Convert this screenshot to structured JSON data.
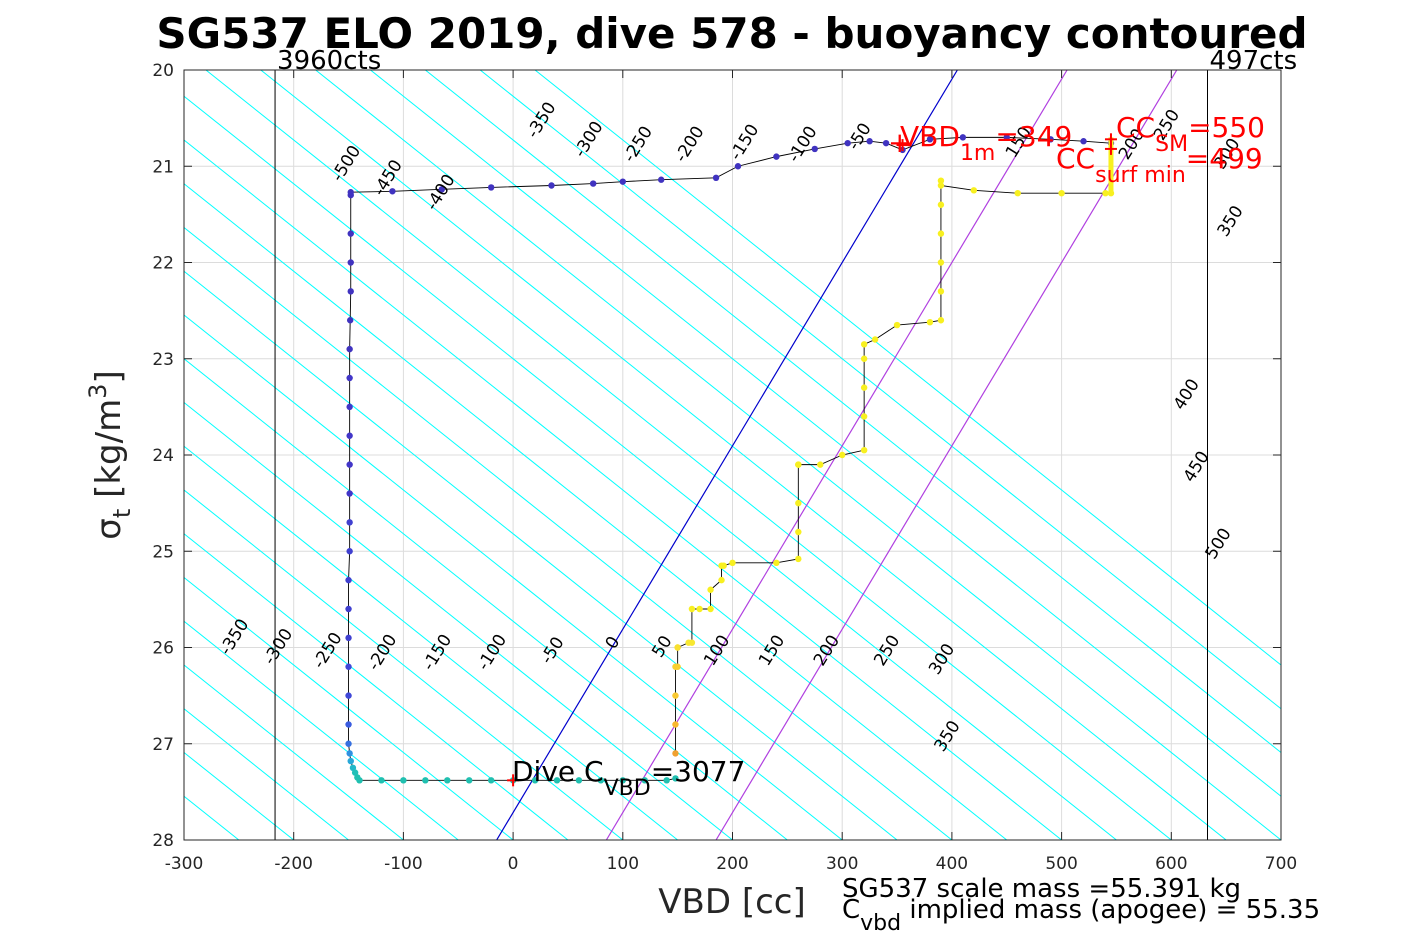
{
  "chart_data": {
    "type": "line",
    "title": "SG537 ELO 2019, dive 578 - buoyancy contoured",
    "xlabel": "VBD [cc]",
    "ylabel": {
      "sym": "σ",
      "sub": "t",
      "rest": " [kg/m",
      "sup": "3",
      "end": "]"
    },
    "xlim": [
      -300,
      700
    ],
    "ylim": [
      20,
      28
    ],
    "y_reversed": true,
    "grid": true,
    "xticks": [
      -300,
      -200,
      -100,
      0,
      100,
      200,
      300,
      400,
      500,
      600,
      700
    ],
    "yticks": [
      20,
      21,
      22,
      23,
      24,
      25,
      26,
      27,
      28
    ],
    "count_lines": [
      {
        "x": -217,
        "label": "3960cts"
      },
      {
        "x": 633,
        "label": "497cts"
      }
    ],
    "contours": {
      "color": "#00ffff",
      "offsets": [
        -700,
        -650,
        -600,
        -550,
        -500,
        -450,
        -400,
        -350,
        -300,
        -250,
        -200,
        -150,
        -100,
        -50,
        0,
        50,
        100,
        150,
        200,
        250,
        300,
        350,
        400,
        450,
        500,
        550,
        600,
        650,
        700,
        750,
        800,
        850,
        900
      ],
      "slope_cc_per_kgm3": 110,
      "labels": [
        {
          "text": "-350",
          "x": -250,
          "y": 25.92,
          "angle": -58
        },
        {
          "text": "-300",
          "x": -210,
          "y": 26.02,
          "angle": -58
        },
        {
          "text": "-250",
          "x": -165,
          "y": 26.06,
          "angle": -58
        },
        {
          "text": "-200",
          "x": -115,
          "y": 26.08,
          "angle": -58
        },
        {
          "text": "-150",
          "x": -65,
          "y": 26.08,
          "angle": -58
        },
        {
          "text": "-100",
          "x": -15,
          "y": 26.08,
          "angle": -58
        },
        {
          "text": "-50",
          "x": 40,
          "y": 26.06,
          "angle": -58
        },
        {
          "text": "0",
          "x": 95,
          "y": 25.98,
          "angle": -58
        },
        {
          "text": "50",
          "x": 140,
          "y": 26.02,
          "angle": -58
        },
        {
          "text": "100",
          "x": 190,
          "y": 26.06,
          "angle": -58
        },
        {
          "text": "150",
          "x": 240,
          "y": 26.06,
          "angle": -58
        },
        {
          "text": "200",
          "x": 290,
          "y": 26.06,
          "angle": -58
        },
        {
          "text": "250",
          "x": 345,
          "y": 26.06,
          "angle": -58
        },
        {
          "text": "300",
          "x": 395,
          "y": 26.15,
          "angle": -58
        },
        {
          "text": "350",
          "x": 400,
          "y": 26.95,
          "angle": -58
        },
        {
          "text": "-500",
          "x": -148,
          "y": 21.0,
          "angle": -58
        },
        {
          "text": "-450",
          "x": -110,
          "y": 21.15,
          "angle": -58
        },
        {
          "text": "-400",
          "x": -62,
          "y": 21.3,
          "angle": -58
        },
        {
          "text": "-350",
          "x": 30,
          "y": 20.55,
          "angle": -58
        },
        {
          "text": "-300",
          "x": 73,
          "y": 20.75,
          "angle": -58
        },
        {
          "text": "-250",
          "x": 118,
          "y": 20.8,
          "angle": -58
        },
        {
          "text": "-200",
          "x": 165,
          "y": 20.8,
          "angle": -58
        },
        {
          "text": "-150",
          "x": 215,
          "y": 20.78,
          "angle": -58
        },
        {
          "text": "-100",
          "x": 268,
          "y": 20.8,
          "angle": -58
        },
        {
          "text": "-50",
          "x": 320,
          "y": 20.72,
          "angle": -58
        },
        {
          "text": "150",
          "x": 465,
          "y": 20.78,
          "angle": -58
        },
        {
          "text": "200",
          "x": 568,
          "y": 20.8,
          "angle": -58
        },
        {
          "text": "250",
          "x": 600,
          "y": 20.6,
          "angle": -58
        },
        {
          "text": "300",
          "x": 655,
          "y": 20.9,
          "angle": -58
        },
        {
          "text": "350",
          "x": 658,
          "y": 21.6,
          "angle": -58
        },
        {
          "text": "400",
          "x": 618,
          "y": 23.4,
          "angle": -58
        },
        {
          "text": "450",
          "x": 627,
          "y": 24.15,
          "angle": -58
        },
        {
          "text": "500",
          "x": 647,
          "y": 24.95,
          "angle": -58
        }
      ]
    },
    "reference_lines": [
      {
        "name": "neutral",
        "color": "#0000cc",
        "points": [
          [
            -15,
            28
          ],
          [
            405,
            20
          ]
        ]
      },
      {
        "name": "magenta-1",
        "color": "#b040e0",
        "points": [
          [
            85,
            28
          ],
          [
            505,
            20
          ]
        ]
      },
      {
        "name": "magenta-2",
        "color": "#b040e0",
        "points": [
          [
            185,
            28
          ],
          [
            605,
            20
          ]
        ]
      }
    ],
    "series": [
      {
        "style": "dive-path",
        "line_color": "#000000",
        "x": [
          -148,
          -148,
          -148,
          -148,
          -148.5,
          -149,
          -149,
          -149,
          -149,
          -149,
          -149,
          -149,
          -149,
          -150,
          -150,
          -150,
          -150,
          -150,
          -150,
          -150,
          -149,
          -148,
          -146,
          -144,
          -142,
          -140,
          -120,
          -100,
          -80,
          -60,
          -40,
          -20,
          0,
          20,
          40,
          60,
          80,
          100,
          120,
          140,
          148
        ],
        "y": [
          21.3,
          21.7,
          22.0,
          22.3,
          22.6,
          22.9,
          23.2,
          23.5,
          23.8,
          24.1,
          24.4,
          24.7,
          25.0,
          25.3,
          25.6,
          25.9,
          26.2,
          26.5,
          26.8,
          27.0,
          27.1,
          27.18,
          27.25,
          27.3,
          27.35,
          27.38,
          27.38,
          27.38,
          27.38,
          27.38,
          27.38,
          27.38,
          27.38,
          27.38,
          27.38,
          27.38,
          27.38,
          27.38,
          27.38,
          27.38,
          27.36
        ],
        "colors": [
          "#4033c0",
          "#4033c0",
          "#4033c0",
          "#4033c0",
          "#4033c0",
          "#4033c0",
          "#4236c8",
          "#4236c8",
          "#4236c8",
          "#4236c8",
          "#4236c8",
          "#4040d0",
          "#4040d0",
          "#4040d0",
          "#4040d0",
          "#4040d0",
          "#4048d8",
          "#4048d8",
          "#3a5ce0",
          "#3670e0",
          "#3090e0",
          "#28a8d8",
          "#22b8c8",
          "#20c0b8",
          "#20c0b0",
          "#20c0b0",
          "#20c0b0",
          "#20c0b0",
          "#20c0b0",
          "#20c0b0",
          "#20c0b0",
          "#20c0b0",
          "#20c0b0",
          "#20c0b0",
          "#20c0b0",
          "#20c0b0",
          "#20c0b0",
          "#20c0b0",
          "#20c0b0",
          "#20c0b0",
          "#20c0b0"
        ]
      },
      {
        "style": "climb-path",
        "line_color": "#000000",
        "x": [
          148,
          148,
          148,
          148,
          150,
          150,
          150,
          160,
          163,
          163,
          170,
          180,
          180,
          190,
          190,
          192,
          200,
          240,
          260,
          260,
          260,
          260,
          260,
          280,
          300,
          320,
          320,
          320,
          320,
          320,
          330,
          350,
          380,
          390,
          390,
          390,
          390,
          390,
          390,
          390,
          420,
          460,
          500,
          540,
          545
        ],
        "y": [
          27.1,
          26.8,
          26.5,
          26.2,
          26.2,
          26.0,
          26.0,
          25.95,
          25.95,
          25.6,
          25.6,
          25.6,
          25.4,
          25.3,
          25.15,
          25.15,
          25.12,
          25.12,
          25.08,
          24.8,
          24.5,
          24.1,
          24.1,
          24.1,
          24.0,
          23.95,
          23.6,
          23.3,
          23.0,
          22.85,
          22.8,
          22.65,
          22.62,
          22.6,
          22.3,
          22.0,
          21.7,
          21.4,
          21.15,
          21.2,
          21.25,
          21.28,
          21.28,
          21.28,
          21.28
        ],
        "colors": [
          "#f0a030",
          "#f8b830",
          "#f8c830",
          "#f8d030",
          "#f8d030",
          "#f8e030",
          "#f8e030",
          "#f8e830",
          "#f8e830",
          "#f8f020",
          "#f8f020",
          "#f8f020",
          "#f8f020",
          "#f8f020",
          "#f8f020",
          "#f8f020",
          "#f8f020",
          "#f8f020",
          "#f8f020",
          "#f8f020",
          "#f8f020",
          "#f8f020",
          "#f8f020",
          "#f8f020",
          "#f8f020",
          "#f8f020",
          "#f8f020",
          "#f8f020",
          "#f8f020",
          "#f8f020",
          "#f8f020",
          "#f8f020",
          "#f8f020",
          "#f8f020",
          "#f8f020",
          "#f8f020",
          "#f8f020",
          "#f8f020",
          "#f8f020",
          "#f8f020",
          "#f8f020",
          "#f8f020",
          "#f8f020",
          "#f8f020",
          "#f8f020"
        ]
      },
      {
        "style": "surface-path",
        "line_color": "#000000",
        "x": [
          -148,
          -110,
          -65,
          -20,
          35,
          73,
          100,
          135,
          185,
          205,
          240,
          275,
          305,
          325,
          340,
          355,
          380,
          410,
          450,
          490,
          520,
          545
        ],
        "y": [
          21.27,
          21.26,
          21.24,
          21.22,
          21.2,
          21.18,
          21.16,
          21.14,
          21.12,
          21.0,
          20.9,
          20.82,
          20.76,
          20.74,
          20.76,
          20.83,
          20.72,
          20.7,
          20.7,
          20.72,
          20.74,
          20.76
        ],
        "colors": [
          "#4033c0",
          "#4033c0",
          "#4033c0",
          "#4033c0",
          "#4033c0",
          "#4033c0",
          "#4033c0",
          "#4033c0",
          "#4033c0",
          "#4033c0",
          "#4033c0",
          "#4033c0",
          "#4033c0",
          "#4033c0",
          "#4033c0",
          "#4033c0",
          "#4033c0",
          "#4033c0",
          "#4033c0",
          "#4033c0",
          "#4033c0",
          "#4033c0"
        ]
      }
    ],
    "yellow_vertical": {
      "x": 545,
      "y": [
        20.7,
        21.28
      ]
    },
    "red_markers": [
      {
        "x": 0,
        "y": 27.38
      },
      {
        "x": 355,
        "y": 20.78
      },
      {
        "x": 545,
        "y": 20.72
      },
      {
        "x": 545,
        "y": 20.82
      }
    ],
    "annotations": {
      "dive_cvbd": {
        "pre": "Dive C",
        "sub": "VBD",
        "post": "=3077"
      },
      "vbd_1m": {
        "pre": "VBD",
        "sub": "1m",
        "post": "=349"
      },
      "cc_sm": {
        "pre": "CC",
        "sub": "SM",
        "post": "=550"
      },
      "cc_surf": {
        "pre": "CC",
        "sub": "surf min",
        "post": "=499"
      },
      "marker_plus": "+"
    },
    "footer": {
      "line1": "SG537 scale mass =55.391 kg",
      "line2_pre": "C",
      "line2_sub": "vbd",
      "line2_post": " implied mass (apogee) = 55.35"
    }
  }
}
